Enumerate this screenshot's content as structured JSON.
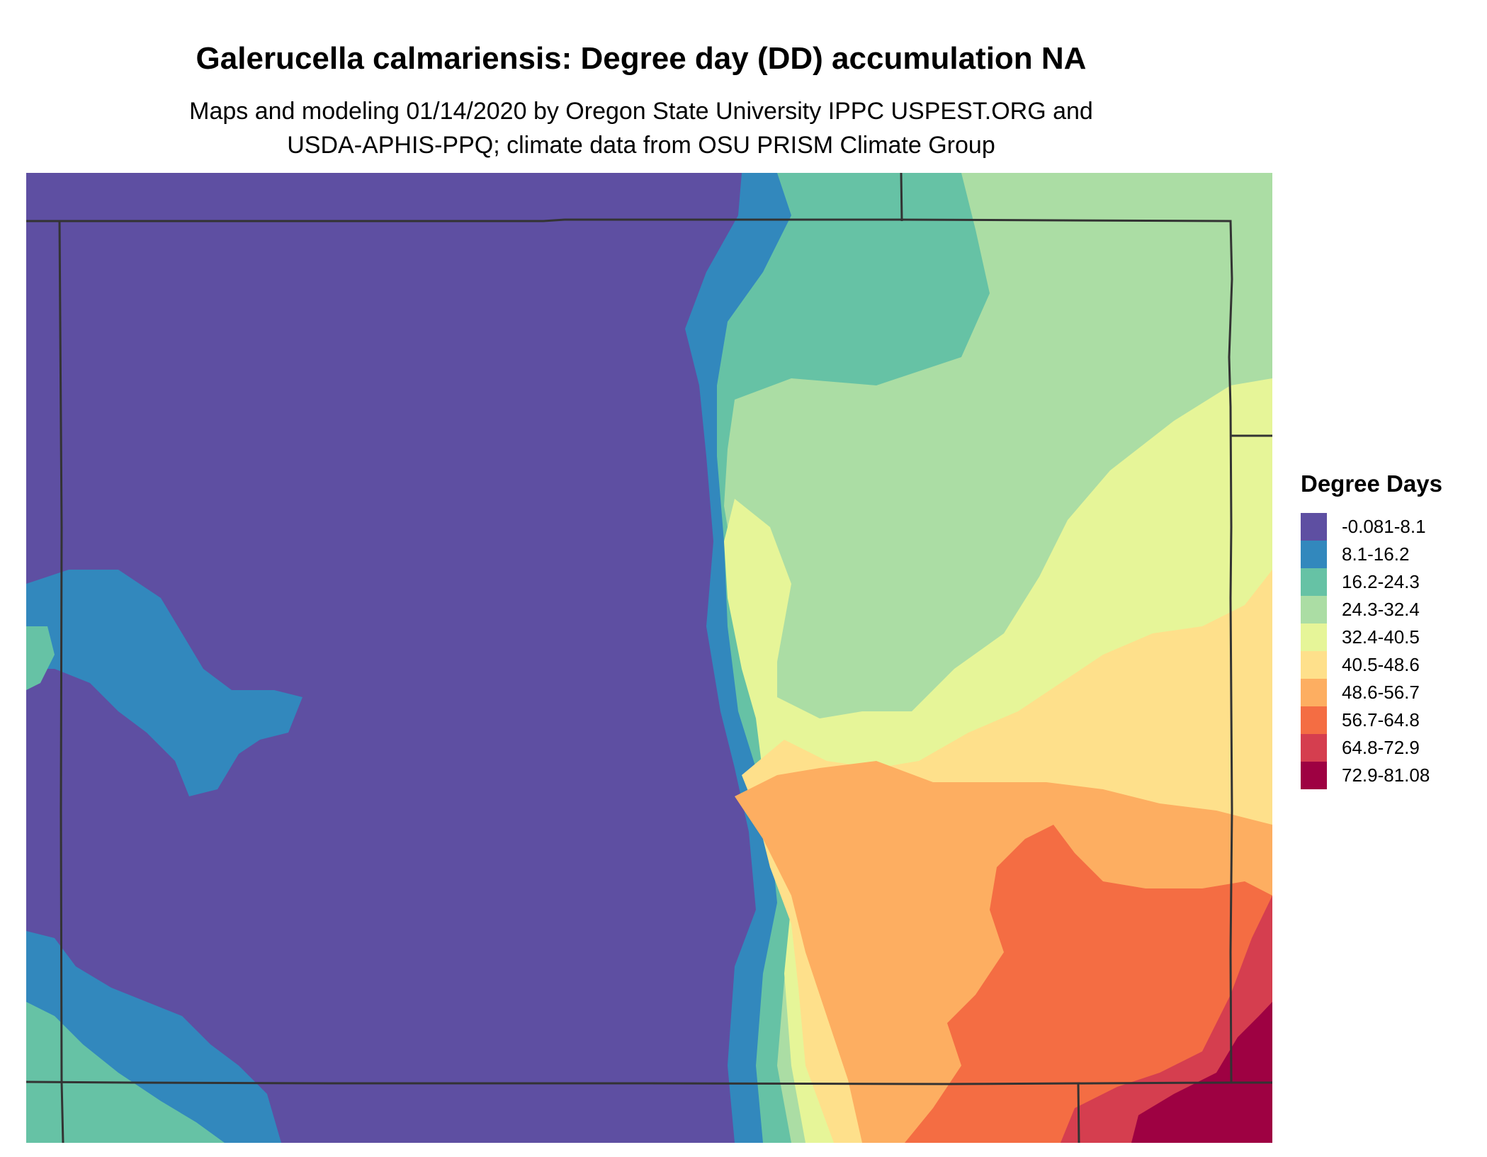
{
  "title": "Galerucella calmariensis: Degree day (DD) accumulation NA",
  "subtitle_line1": "Maps and modeling 01/14/2020 by Oregon State University IPPC USPEST.ORG and",
  "subtitle_line2": "USDA-APHIS-PPQ; climate data from OSU PRISM Climate Group",
  "legend": {
    "title": "Degree Days",
    "items": [
      {
        "label": "-0.081-8.1",
        "color": "#5e4fa2"
      },
      {
        "label": "8.1-16.2",
        "color": "#3288bd"
      },
      {
        "label": "16.2-24.3",
        "color": "#66c2a5"
      },
      {
        "label": "24.3-32.4",
        "color": "#abdda4"
      },
      {
        "label": "32.4-40.5",
        "color": "#e6f598"
      },
      {
        "label": "40.5-48.6",
        "color": "#fee08b"
      },
      {
        "label": "48.6-56.7",
        "color": "#fdae61"
      },
      {
        "label": "56.7-64.8",
        "color": "#f46d43"
      },
      {
        "label": "64.8-72.9",
        "color": "#d53e4f"
      },
      {
        "label": "72.9-81.08",
        "color": "#9e0142"
      }
    ]
  }
}
